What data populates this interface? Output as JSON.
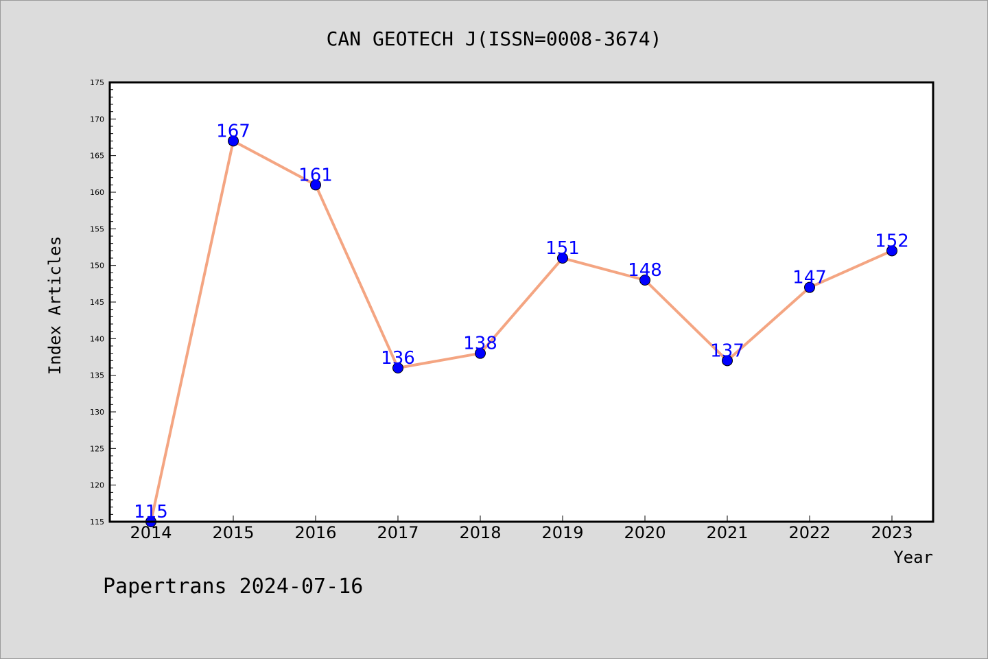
{
  "chart_data": {
    "type": "line",
    "title": "CAN GEOTECH J(ISSN=0008-3674)",
    "xlabel": "Year",
    "ylabel": "Index Articles",
    "categories": [
      "2014",
      "2015",
      "2016",
      "2017",
      "2018",
      "2019",
      "2020",
      "2021",
      "2022",
      "2023"
    ],
    "values": [
      115,
      167,
      161,
      136,
      138,
      151,
      148,
      137,
      147,
      152
    ],
    "ylim": [
      115,
      175
    ],
    "yticks": [
      115,
      120,
      125,
      130,
      135,
      140,
      145,
      150,
      155,
      160,
      165,
      170,
      175
    ],
    "grid": false,
    "legend": "none",
    "colors": {
      "line": "#f4a582",
      "marker": "#0000ff",
      "label": "#0000ff",
      "background": "#dcdcdc",
      "plot": "#ffffff"
    }
  },
  "footer": {
    "credit": "Papertrans 2024-07-16"
  }
}
